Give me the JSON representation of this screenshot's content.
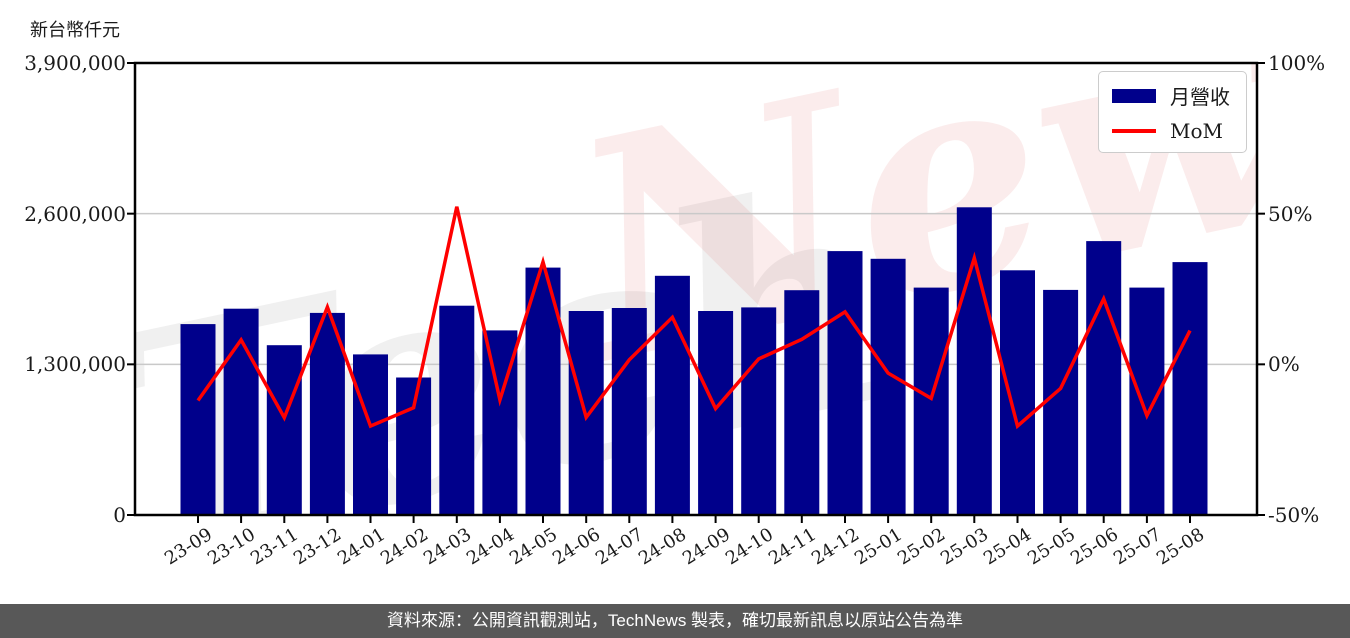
{
  "page": {
    "y_axis_title": "新台幣仟元",
    "caption": "資料來源：公開資訊觀測站，TechNews 製表，確切最新訊息以原站公告為準",
    "watermark": {
      "part1": "Tech",
      "part2": "News"
    }
  },
  "legend": {
    "revenue_label": "月營收",
    "mom_label": "MoM"
  },
  "chart_data": {
    "type": "bar+line",
    "title": "",
    "ylabel_left": "新台幣仟元",
    "ylabel_right": "%",
    "grid": "horizontal",
    "legend_position": "top-right",
    "ylim_left": [
      0,
      3900000
    ],
    "ylim_right": [
      -50,
      100
    ],
    "y_left_ticks": [
      {
        "label": "3,900,000",
        "value": 3900000
      },
      {
        "label": "2,600,000",
        "value": 2600000
      },
      {
        "label": "1,300,000",
        "value": 1300000
      },
      {
        "label": "0",
        "value": 0
      }
    ],
    "y_right_ticks": [
      {
        "label": "100%",
        "value": 100
      },
      {
        "label": "50%",
        "value": 50
      },
      {
        "label": "0%",
        "value": 0
      },
      {
        "label": "-50%",
        "value": -50
      }
    ],
    "categories": [
      "23-09",
      "23-10",
      "23-11",
      "23-12",
      "24-01",
      "24-02",
      "24-03",
      "24-04",
      "24-05",
      "24-06",
      "24-07",
      "24-08",
      "24-09",
      "24-10",
      "24-11",
      "24-12",
      "25-01",
      "25-02",
      "25-03",
      "25-04",
      "25-05",
      "25-06",
      "25-07",
      "25-08"
    ],
    "series": [
      {
        "name": "月營收",
        "type": "bar",
        "axis": "left",
        "values": [
          1647000,
          1780000,
          1465000,
          1744000,
          1386000,
          1186000,
          1806000,
          1593000,
          2135000,
          1760000,
          1786000,
          2064000,
          1760000,
          1791000,
          1940000,
          2277000,
          2211000,
          1962000,
          2655000,
          2111000,
          1942000,
          2363000,
          1962000,
          2182000
        ]
      },
      {
        "name": "MoM",
        "type": "line",
        "axis": "right",
        "values": [
          -12.0,
          8.1,
          -17.7,
          19.0,
          -20.5,
          -14.4,
          52.3,
          -11.8,
          34.0,
          -17.6,
          1.5,
          15.6,
          -14.7,
          1.8,
          8.3,
          17.4,
          -2.9,
          -11.3,
          35.3,
          -20.5,
          -8.0,
          21.7,
          -17.0,
          11.2
        ]
      }
    ],
    "colors": {
      "bar": "#00008B",
      "line": "#FF0000",
      "grid": "#c9c9c9",
      "axis": "#000000"
    }
  }
}
